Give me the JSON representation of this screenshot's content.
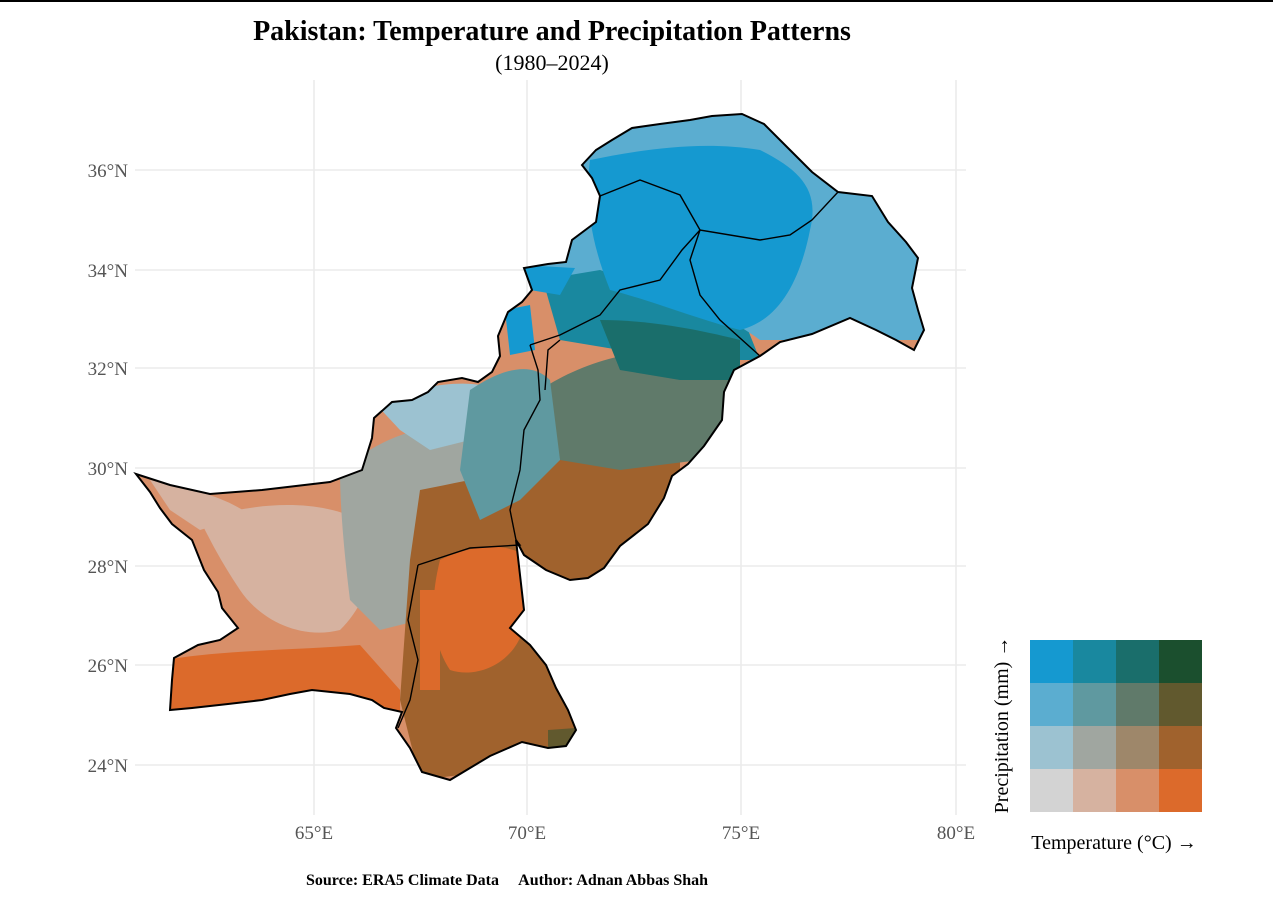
{
  "title": "Pakistan: Temperature and Precipitation Patterns",
  "subtitle": "(1980–2024)",
  "caption": {
    "source": "Source: ERA5 Climate Data",
    "author": "Author: Adnan Abbas Shah"
  },
  "axes": {
    "lat_ticks": [
      "24°N",
      "26°N",
      "28°N",
      "30°N",
      "32°N",
      "34°N",
      "36°N"
    ],
    "lon_ticks": [
      "65°E",
      "70°E",
      "75°E",
      "80°E"
    ]
  },
  "legend": {
    "x_label": "Temperature (°C) →",
    "y_label": "Precipitation (mm) →",
    "grid_colors": [
      [
        "#1599d0",
        "#19889f",
        "#1a6e6b",
        "#1b4f2e"
      ],
      [
        "#5badd0",
        "#5f99a0",
        "#607a6a",
        "#61592e"
      ],
      [
        "#9cc2d1",
        "#a0a6a0",
        "#9e876a",
        "#a0622d"
      ],
      [
        "#d3d3d3",
        "#d6b2a0",
        "#d88f69",
        "#dc6a2b"
      ]
    ]
  },
  "colors": {
    "grid": "#ebebeb",
    "border": "#000000"
  }
}
